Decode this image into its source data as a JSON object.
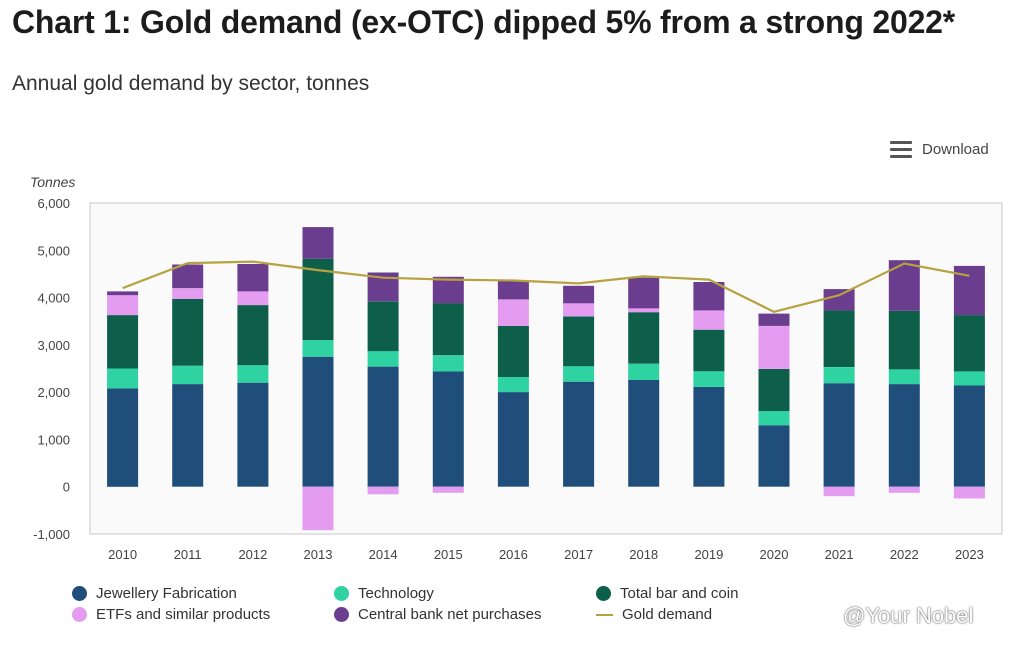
{
  "title": "Chart 1: Gold demand (ex-OTC) dipped 5% from a strong 2022*",
  "subtitle": "Annual gold demand by sector, tonnes",
  "download_label": "Download",
  "watermark": "@Your Nobel",
  "icons": {
    "menu": "hamburger-menu-icon"
  },
  "chart_data": {
    "type": "bar",
    "stacked": true,
    "ylabel": "Tonnes",
    "ylim": [
      -1000,
      6000
    ],
    "yticks": [
      -1000,
      0,
      1000,
      2000,
      3000,
      4000,
      5000,
      6000
    ],
    "ytick_labels": [
      "-1,000",
      "0",
      "1,000",
      "2,000",
      "3,000",
      "4,000",
      "5,000",
      "6,000"
    ],
    "categories": [
      "2010",
      "2011",
      "2012",
      "2013",
      "2014",
      "2015",
      "2016",
      "2017",
      "2018",
      "2019",
      "2020",
      "2021",
      "2022",
      "2023"
    ],
    "series": [
      {
        "name": "Jewellery Fabrication",
        "color": "#1f4e7a",
        "values": [
          2080,
          2170,
          2200,
          2750,
          2540,
          2440,
          2000,
          2220,
          2260,
          2110,
          1300,
          2190,
          2170,
          2140
        ]
      },
      {
        "name": "Technology",
        "color": "#2fd3a2",
        "values": [
          420,
          390,
          370,
          350,
          330,
          340,
          320,
          330,
          340,
          330,
          300,
          340,
          310,
          300
        ]
      },
      {
        "name": "Total bar and coin",
        "color": "#0d5f4a",
        "values": [
          1130,
          1410,
          1270,
          1720,
          1050,
          1100,
          1080,
          1050,
          1090,
          880,
          890,
          1200,
          1240,
          1190
        ]
      },
      {
        "name": "ETFs and similar products",
        "color": "#e49cf0",
        "values": [
          420,
          230,
          290,
          -920,
          -160,
          -130,
          560,
          280,
          80,
          410,
          910,
          -200,
          -130,
          -250
        ]
      },
      {
        "name": "Central bank net purchases",
        "color": "#6b3d8e",
        "values": [
          80,
          500,
          580,
          670,
          610,
          560,
          390,
          370,
          650,
          600,
          260,
          450,
          1070,
          1040
        ]
      }
    ],
    "line_series": {
      "name": "Gold demand",
      "color": "#b6a240",
      "values": [
        4200,
        4730,
        4760,
        4580,
        4420,
        4380,
        4360,
        4300,
        4450,
        4380,
        3700,
        4050,
        4720,
        4460
      ]
    },
    "legend_position": "bottom",
    "grid": false
  }
}
